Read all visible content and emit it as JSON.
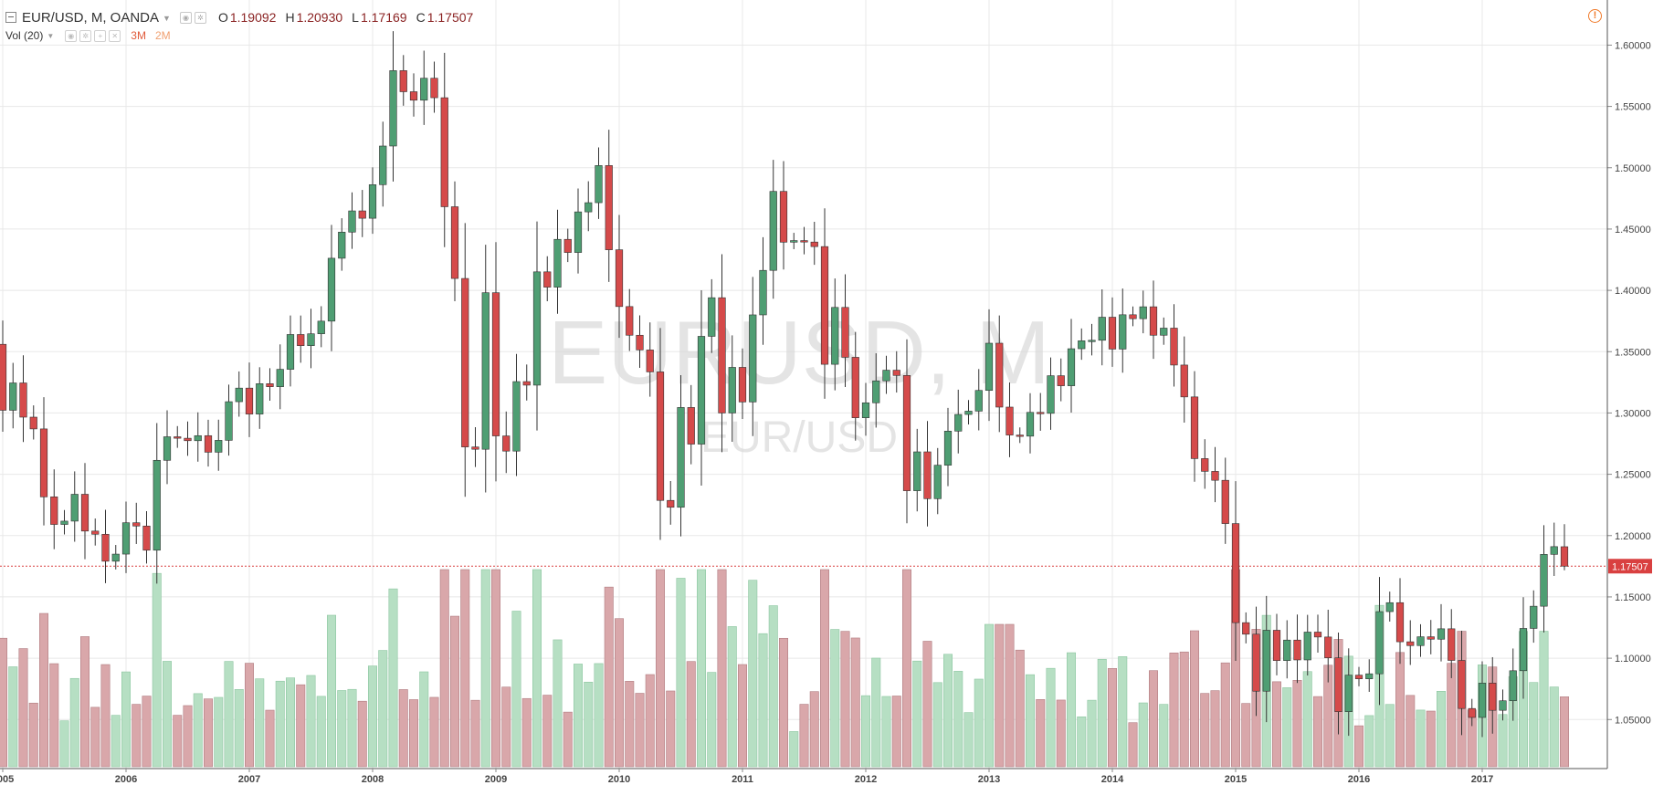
{
  "legend": {
    "symbol": "EUR/USD, M, OANDA",
    "open_label": "O",
    "open_value": "1.19092",
    "high_label": "H",
    "high_value": "1.20930",
    "low_label": "L",
    "low_value": "1.17169",
    "close_label": "C",
    "close_value": "1.17507"
  },
  "volume_legend": {
    "label": "Vol (20)",
    "v1": "3M",
    "v2": "2M"
  },
  "watermark": {
    "main": "EURUSD, M",
    "sub": "EUR/USD"
  },
  "last_price_tag": "1.17507",
  "colors": {
    "up": "#4f9e73",
    "down": "#d54a4a",
    "up_vol": "#b6dfc3",
    "down_vol": "#d9a7aa",
    "grid": "#e8e8e8",
    "axis_text": "#444",
    "price_line": "#d94040"
  },
  "chart_data": {
    "type": "candlestick",
    "title": "EUR/USD, M, OANDA",
    "interval": "monthly",
    "price_axis": {
      "ticks": [
        1.05,
        1.1,
        1.15,
        1.2,
        1.25,
        1.3,
        1.35,
        1.4,
        1.45,
        1.5,
        1.55,
        1.6
      ],
      "tick_labels": [
        "1.05000",
        "1.10000",
        "1.15000",
        "1.20000",
        "1.25000",
        "1.30000",
        "1.35000",
        "1.40000",
        "1.45000",
        "1.50000",
        "1.55000",
        "1.60000"
      ],
      "range": [
        1.01,
        1.61
      ]
    },
    "time_axis": {
      "labels": [
        "2005",
        "2006",
        "2007",
        "2008",
        "2009",
        "2010",
        "2011",
        "2012",
        "2013",
        "2014",
        "2015",
        "2016",
        "2017"
      ],
      "label_months_from_2005_01": [
        0,
        12,
        24,
        36,
        48,
        60,
        72,
        84,
        96,
        108,
        120,
        132,
        144
      ]
    },
    "last_price": 1.17507,
    "volume_scale_max": 3.6,
    "first_bar": "2005-01",
    "closes": [
      1.3022,
      1.3245,
      1.2966,
      1.287,
      1.2316,
      1.2091,
      1.2118,
      1.2337,
      1.2037,
      1.2011,
      1.1791,
      1.1849,
      1.2105,
      1.2078,
      1.1881,
      1.2614,
      1.2806,
      1.2794,
      1.2774,
      1.2815,
      1.268,
      1.2777,
      1.3092,
      1.3203,
      1.2991,
      1.3239,
      1.3214,
      1.3356,
      1.364,
      1.3549,
      1.3646,
      1.3749,
      1.4262,
      1.4475,
      1.4648,
      1.4588,
      1.4862,
      1.5177,
      1.5792,
      1.562,
      1.5551,
      1.573,
      1.5571,
      1.4682,
      1.4097,
      1.2723,
      1.2704,
      1.3981,
      1.2813,
      1.2689,
      1.3256,
      1.3227,
      1.4151,
      1.4026,
      1.4416,
      1.4309,
      1.464,
      1.4715,
      1.5018,
      1.4331,
      1.3868,
      1.3634,
      1.3514,
      1.3335,
      1.2287,
      1.2231,
      1.3045,
      1.2746,
      1.3625,
      1.394,
      1.3,
      1.3372,
      1.309,
      1.38,
      1.4163,
      1.4807,
      1.4393,
      1.4406,
      1.4394,
      1.4357,
      1.3397,
      1.3861,
      1.3454,
      1.2961,
      1.3083,
      1.3262,
      1.3349,
      1.3306,
      1.2366,
      1.2683,
      1.2301,
      1.2574,
      1.2852,
      1.2988,
      1.3015,
      1.3184,
      1.3569,
      1.3048,
      1.282,
      1.2811,
      1.3005,
      1.2997,
      1.3304,
      1.3222,
      1.3524,
      1.3589,
      1.3593,
      1.3781,
      1.3521,
      1.3801,
      1.3769,
      1.3866,
      1.3634,
      1.3692,
      1.3391,
      1.3131,
      1.2628,
      1.2524,
      1.2451,
      1.2098,
      1.129,
      1.1196,
      1.0731,
      1.1228,
      1.0981,
      1.1148,
      1.0986,
      1.1213,
      1.1173,
      1.1003,
      1.0564,
      1.0862,
      1.0832,
      1.0873,
      1.138,
      1.1453,
      1.1134,
      1.1103,
      1.1175,
      1.1155,
      1.124,
      1.0982,
      1.059,
      1.0517,
      1.0797,
      1.0575,
      1.0653,
      1.0898,
      1.1243,
      1.1424,
      1.1847,
      1.191,
      1.1751
    ]
  }
}
